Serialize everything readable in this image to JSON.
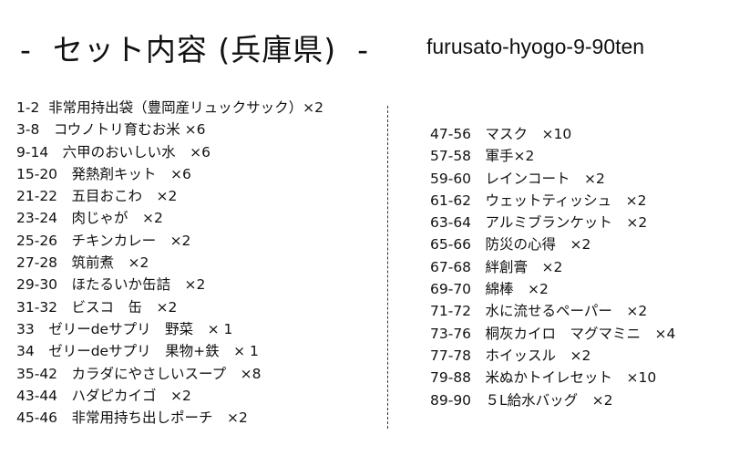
{
  "header": {
    "title": "-  セット内容 (兵庫県)  -",
    "code": "furusato-hyogo-9-90ten"
  },
  "left_items": [
    "1-2  非常用持出袋（豊岡産リュックサック）×2",
    "3-8　コウノトリ育むお米 ×6",
    "9-14　六甲のおいしい水　×6",
    "15-20　発熱剤キット　×6",
    "21-22　五目おこわ　×2",
    "23-24　肉じゃが　×2",
    "25-26　チキンカレー　×2",
    "27-28　筑前煮　×2",
    "29-30　ほたるいか缶詰　×2",
    "31-32　ビスコ　缶　×2",
    "33　ゼリーdeサプリ　野菜　× 1",
    "34　ゼリーdeサプリ　果物+鉄　× 1",
    "35-42　カラダにやさしいスープ　×8",
    "43-44　ハダピカイゴ　×2",
    "45-46　非常用持ち出しポーチ　×2"
  ],
  "right_items": [
    "47-56　マスク　×10",
    "57-58　軍手×2",
    "59-60　レインコート　×2",
    "61-62　ウェットティッシュ　×2",
    "63-64　アルミブランケット　×2",
    "65-66　防災の心得　×2",
    "67-68　絆創膏　×2",
    "69-70　綿棒　×2",
    "71-72　水に流せるペーパー　×2",
    "73-76　桐灰カイロ　マグマミニ　×4",
    "77-78　ホイッスル　×2",
    "79-88　米ぬかトイレセット　×10",
    "89-90　５L給水バッグ　×2"
  ]
}
